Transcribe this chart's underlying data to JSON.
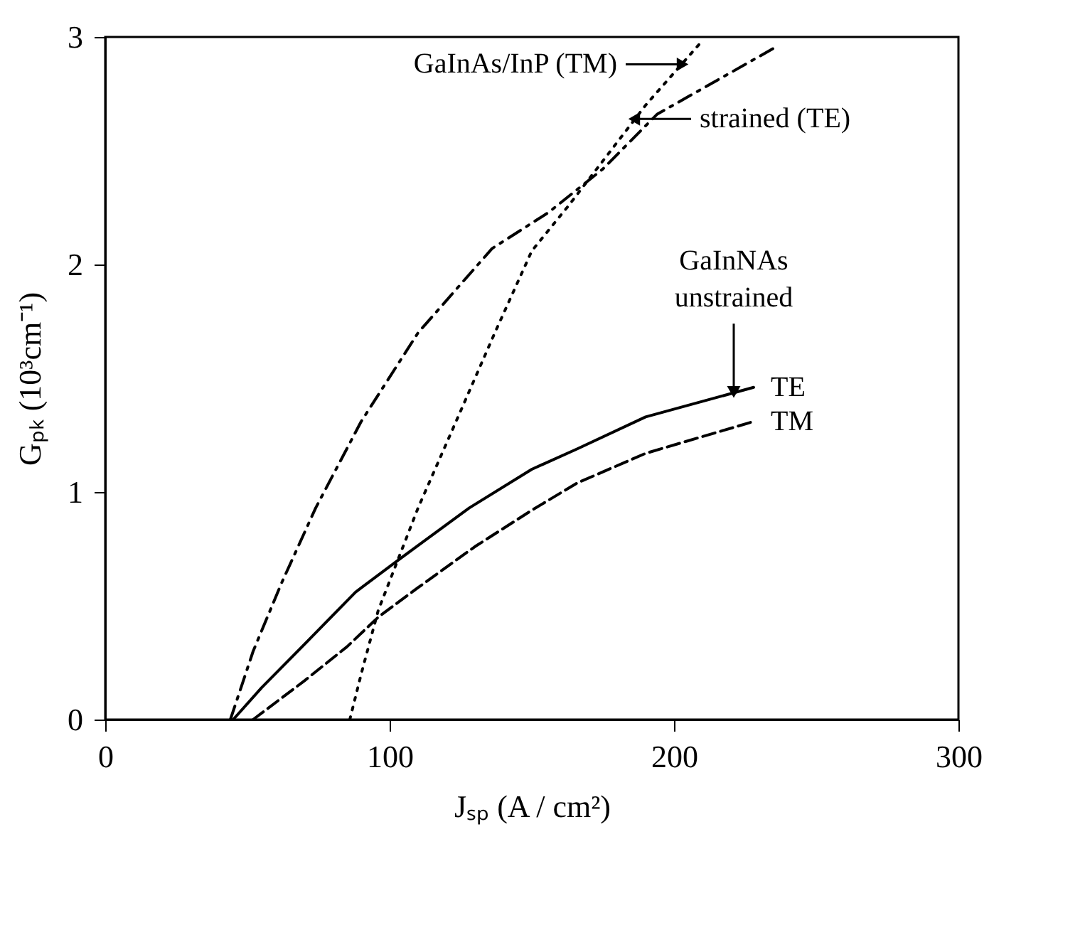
{
  "chart_data": {
    "type": "line",
    "xlabel": "Jₛₚ (A / cm²)",
    "ylabel": "Gₚₖ (10³cm⁻¹)",
    "xlim": [
      0,
      300
    ],
    "ylim": [
      0,
      3
    ],
    "xticks": [
      0,
      100,
      200,
      300
    ],
    "yticks": [
      0,
      1,
      2,
      3
    ],
    "grid": false,
    "marker": "none",
    "series": [
      {
        "name": "TE",
        "color": "#000000",
        "line_style": "solid",
        "x": [
          45,
          55,
          70,
          88,
          104,
          128,
          150,
          166,
          190,
          228
        ],
        "values": [
          0,
          0.14,
          0.33,
          0.56,
          0.71,
          0.93,
          1.1,
          1.19,
          1.33,
          1.46
        ]
      },
      {
        "name": "TM",
        "color": "#000000",
        "line_style": "dashed",
        "x": [
          52,
          70,
          85,
          96,
          110,
          130,
          150,
          166,
          190,
          228
        ],
        "values": [
          0,
          0.17,
          0.32,
          0.45,
          0.58,
          0.76,
          0.92,
          1.04,
          1.17,
          1.31
        ]
      },
      {
        "color": "#000000",
        "line_style": "dashdot",
        "x": [
          44,
          52,
          62,
          74,
          90,
          110,
          136,
          156,
          175,
          194,
          235
        ],
        "values": [
          0,
          0.3,
          0.6,
          0.93,
          1.31,
          1.7,
          2.07,
          2.23,
          2.42,
          2.66,
          2.95
        ]
      },
      {
        "color": "#000000",
        "line_style": "dotted",
        "x": [
          86,
          90,
          96,
          110,
          123,
          137,
          150,
          163,
          190,
          209
        ],
        "values": [
          0,
          0.2,
          0.48,
          0.93,
          1.3,
          1.7,
          2.06,
          2.26,
          2.7,
          2.97
        ]
      }
    ],
    "annotations": [
      {
        "text": "GaInAs/InP (TM)",
        "x": 203,
        "y": 2.88
      },
      {
        "text": "strained (TE)",
        "x": 186,
        "y": 2.64
      },
      {
        "text": "GaInNAs\nunstrained",
        "x": 221,
        "y": 1.44
      }
    ]
  }
}
